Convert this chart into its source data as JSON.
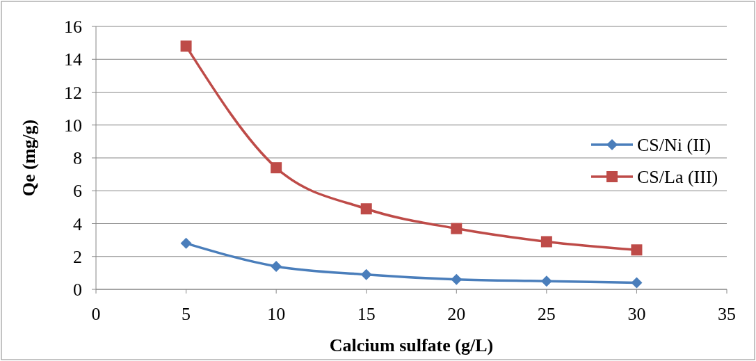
{
  "chart_data": {
    "type": "line",
    "xlabel": "Calcium sulfate (g/L)",
    "ylabel": "Qe (mg/g)",
    "x": [
      5,
      10,
      15,
      20,
      25,
      30
    ],
    "series": [
      {
        "name": "CS/Ni (II)",
        "color": "#4a7ebb",
        "values": [
          2.8,
          1.4,
          0.9,
          0.6,
          0.5,
          0.4
        ],
        "marker": "diamond"
      },
      {
        "name": "CS/La (III)",
        "color": "#be4b48",
        "values": [
          14.8,
          7.4,
          4.9,
          3.7,
          2.9,
          2.4
        ],
        "marker": "square"
      }
    ],
    "xlim": [
      0,
      35
    ],
    "xticks": [
      0,
      5,
      10,
      15,
      20,
      25,
      30,
      35
    ],
    "ylim": [
      0,
      16
    ],
    "yticks": [
      0,
      2,
      4,
      6,
      8,
      10,
      12,
      14,
      16
    ],
    "grid": "y",
    "legend": "right"
  }
}
